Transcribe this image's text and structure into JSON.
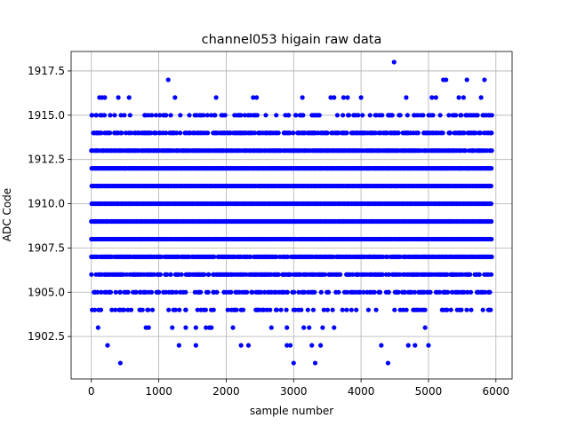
{
  "chart_data": {
    "type": "scatter",
    "title": "channel053 higain raw data",
    "xlabel": "sample number",
    "ylabel": "ADC Code",
    "xlim": [
      -300,
      6240
    ],
    "ylim": [
      1900.1,
      1918.6
    ],
    "xticks": [
      0,
      1000,
      2000,
      3000,
      4000,
      5000,
      6000
    ],
    "xtick_labels": [
      "0",
      "1000",
      "2000",
      "3000",
      "4000",
      "5000",
      "6000"
    ],
    "yticks": [
      1902.5,
      1905.0,
      1907.5,
      1910.0,
      1912.5,
      1915.0,
      1917.5
    ],
    "ytick_labels": [
      "1902.5",
      "1905.0",
      "1907.5",
      "1910.0",
      "1912.5",
      "1915.0",
      "1917.5"
    ],
    "grid": true,
    "marker_color": "#0000ff",
    "series": [
      {
        "values_note": "dense levels",
        "levels": [
          {
            "y": 1908,
            "density": 1.0
          },
          {
            "y": 1909,
            "density": 1.0
          },
          {
            "y": 1910,
            "density": 1.0
          },
          {
            "y": 1911,
            "density": 1.0
          },
          {
            "y": 1912,
            "density": 1.0
          },
          {
            "y": 1907,
            "density": 0.85
          },
          {
            "y": 1913,
            "density": 0.85
          },
          {
            "y": 1906,
            "density": 0.65
          },
          {
            "y": 1914,
            "density": 0.6
          },
          {
            "y": 1905,
            "density": 0.35
          },
          {
            "y": 1915,
            "density": 0.3
          },
          {
            "y": 1904,
            "density": 0.22
          }
        ],
        "sparse_points": [
          {
            "x": 200,
            "y": 1916
          },
          {
            "x": 120,
            "y": 1916
          },
          {
            "x": 160,
            "y": 1916
          },
          {
            "x": 400,
            "y": 1916
          },
          {
            "x": 560,
            "y": 1916
          },
          {
            "x": 1140,
            "y": 1917
          },
          {
            "x": 1240,
            "y": 1916
          },
          {
            "x": 1850,
            "y": 1916
          },
          {
            "x": 2400,
            "y": 1916
          },
          {
            "x": 2450,
            "y": 1916
          },
          {
            "x": 3130,
            "y": 1916
          },
          {
            "x": 3550,
            "y": 1916
          },
          {
            "x": 3600,
            "y": 1916
          },
          {
            "x": 3740,
            "y": 1916
          },
          {
            "x": 3800,
            "y": 1916
          },
          {
            "x": 4000,
            "y": 1916
          },
          {
            "x": 4490,
            "y": 1918
          },
          {
            "x": 4670,
            "y": 1916
          },
          {
            "x": 5050,
            "y": 1916
          },
          {
            "x": 5110,
            "y": 1916
          },
          {
            "x": 5220,
            "y": 1917
          },
          {
            "x": 5260,
            "y": 1917
          },
          {
            "x": 5450,
            "y": 1916
          },
          {
            "x": 5520,
            "y": 1916
          },
          {
            "x": 5570,
            "y": 1917
          },
          {
            "x": 5830,
            "y": 1917
          },
          {
            "x": 5780,
            "y": 1916
          },
          {
            "x": 100,
            "y": 1903
          },
          {
            "x": 810,
            "y": 1903
          },
          {
            "x": 850,
            "y": 1903
          },
          {
            "x": 1200,
            "y": 1903
          },
          {
            "x": 1400,
            "y": 1903
          },
          {
            "x": 1550,
            "y": 1903
          },
          {
            "x": 1700,
            "y": 1903
          },
          {
            "x": 1750,
            "y": 1903
          },
          {
            "x": 1780,
            "y": 1903
          },
          {
            "x": 2100,
            "y": 1903
          },
          {
            "x": 2670,
            "y": 1903
          },
          {
            "x": 2900,
            "y": 1903
          },
          {
            "x": 3150,
            "y": 1903
          },
          {
            "x": 3230,
            "y": 1903
          },
          {
            "x": 3430,
            "y": 1903
          },
          {
            "x": 3600,
            "y": 1903
          },
          {
            "x": 4950,
            "y": 1903
          },
          {
            "x": 240,
            "y": 1902
          },
          {
            "x": 1300,
            "y": 1902
          },
          {
            "x": 1550,
            "y": 1902
          },
          {
            "x": 2220,
            "y": 1902
          },
          {
            "x": 2330,
            "y": 1902
          },
          {
            "x": 2900,
            "y": 1902
          },
          {
            "x": 2950,
            "y": 1902
          },
          {
            "x": 3270,
            "y": 1902
          },
          {
            "x": 3400,
            "y": 1902
          },
          {
            "x": 4300,
            "y": 1902
          },
          {
            "x": 4700,
            "y": 1902
          },
          {
            "x": 4800,
            "y": 1902
          },
          {
            "x": 5000,
            "y": 1902
          },
          {
            "x": 430,
            "y": 1901
          },
          {
            "x": 3000,
            "y": 1901
          },
          {
            "x": 3320,
            "y": 1901
          },
          {
            "x": 4400,
            "y": 1901
          }
        ]
      }
    ]
  }
}
